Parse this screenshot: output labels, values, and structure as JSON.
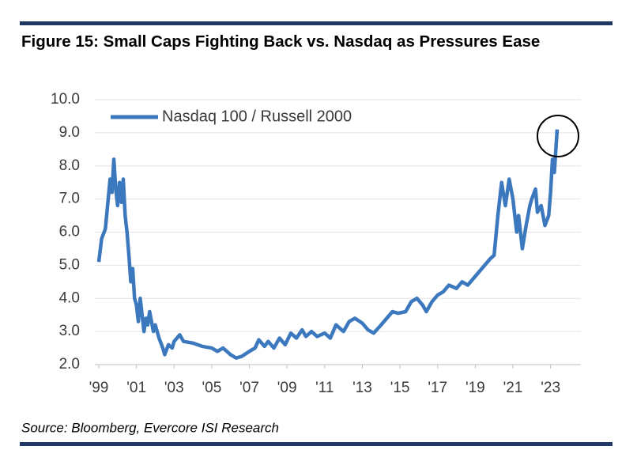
{
  "chart_data": {
    "type": "line",
    "title": "Figure 15: Small Caps Fighting Back vs. Nasdaq as Pressures Ease",
    "source": "Source: Bloomberg, Evercore ISI Research",
    "xlim": [
      1999,
      2024.4
    ],
    "xticks": [
      {
        "value": 1999,
        "label": "'99"
      },
      {
        "value": 2001,
        "label": "'01"
      },
      {
        "value": 2003,
        "label": "'03"
      },
      {
        "value": 2005,
        "label": "'05"
      },
      {
        "value": 2007,
        "label": "'07"
      },
      {
        "value": 2009,
        "label": "'09"
      },
      {
        "value": 2011,
        "label": "'11"
      },
      {
        "value": 2013,
        "label": "'13"
      },
      {
        "value": 2015,
        "label": "'15"
      },
      {
        "value": 2017,
        "label": "'17"
      },
      {
        "value": 2019,
        "label": "'19"
      },
      {
        "value": 2021,
        "label": "'21"
      },
      {
        "value": 2023,
        "label": "'23"
      }
    ],
    "ylim": [
      2,
      10
    ],
    "yticks": [
      {
        "value": 2,
        "label": "2.0"
      },
      {
        "value": 3,
        "label": "3.0"
      },
      {
        "value": 4,
        "label": "4.0"
      },
      {
        "value": 5,
        "label": "5.0"
      },
      {
        "value": 6,
        "label": "6.0"
      },
      {
        "value": 7,
        "label": "7.0"
      },
      {
        "value": 8,
        "label": "8.0"
      },
      {
        "value": 9,
        "label": "9.0"
      },
      {
        "value": 10,
        "label": "10.0"
      }
    ],
    "grid": true,
    "legend": "top-left",
    "x": [
      1999.0,
      1999.15,
      1999.35,
      1999.5,
      1999.6,
      1999.7,
      1999.8,
      1999.9,
      2000.0,
      2000.1,
      2000.2,
      2000.3,
      2000.4,
      2000.5,
      2000.6,
      2000.7,
      2000.8,
      2000.9,
      2001.0,
      2001.1,
      2001.2,
      2001.3,
      2001.4,
      2001.5,
      2001.6,
      2001.7,
      2001.8,
      2001.9,
      2002.0,
      2002.2,
      2002.4,
      2002.5,
      2002.7,
      2002.9,
      2003.0,
      2003.3,
      2003.5,
      2004.0,
      2004.5,
      2005.0,
      2005.3,
      2005.6,
      2006.0,
      2006.3,
      2006.6,
      2007.0,
      2007.3,
      2007.5,
      2007.8,
      2008.0,
      2008.3,
      2008.6,
      2008.9,
      2009.2,
      2009.5,
      2009.8,
      2010.0,
      2010.3,
      2010.6,
      2011.0,
      2011.3,
      2011.6,
      2012.0,
      2012.3,
      2012.6,
      2013.0,
      2013.3,
      2013.6,
      2014.0,
      2014.3,
      2014.6,
      2014.9,
      2015.3,
      2015.6,
      2015.9,
      2016.2,
      2016.4,
      2016.7,
      2017.0,
      2017.3,
      2017.6,
      2018.0,
      2018.3,
      2018.6,
      2018.9,
      2019.2,
      2019.5,
      2019.8,
      2020.0,
      2020.2,
      2020.4,
      2020.6,
      2020.8,
      2021.0,
      2021.2,
      2021.3,
      2021.5,
      2021.7,
      2021.9,
      2022.0,
      2022.2,
      2022.3,
      2022.5,
      2022.7,
      2022.9,
      2023.0,
      2023.1,
      2023.2,
      2023.35
    ],
    "series": [
      {
        "name": "Nasdaq 100 / Russell 2000",
        "color": "#3c78be",
        "values": [
          5.1,
          5.8,
          6.1,
          7.0,
          7.6,
          7.2,
          8.2,
          7.3,
          6.8,
          7.5,
          6.9,
          7.6,
          6.5,
          6.0,
          5.3,
          4.5,
          4.9,
          4.0,
          3.8,
          3.3,
          4.0,
          3.5,
          3.0,
          3.4,
          3.2,
          3.6,
          3.3,
          3.0,
          3.2,
          2.8,
          2.5,
          2.3,
          2.6,
          2.5,
          2.7,
          2.9,
          2.7,
          2.65,
          2.55,
          2.5,
          2.4,
          2.5,
          2.3,
          2.2,
          2.25,
          2.4,
          2.5,
          2.75,
          2.55,
          2.7,
          2.5,
          2.8,
          2.6,
          2.95,
          2.8,
          3.05,
          2.85,
          3.0,
          2.85,
          2.95,
          2.8,
          3.2,
          3.0,
          3.3,
          3.4,
          3.25,
          3.05,
          2.95,
          3.2,
          3.4,
          3.6,
          3.55,
          3.6,
          3.9,
          4.0,
          3.8,
          3.6,
          3.9,
          4.1,
          4.2,
          4.4,
          4.3,
          4.5,
          4.4,
          4.6,
          4.8,
          5.0,
          5.2,
          5.3,
          6.5,
          7.5,
          6.8,
          7.6,
          7.0,
          6.0,
          6.5,
          5.5,
          6.2,
          6.8,
          7.0,
          7.3,
          6.6,
          6.8,
          6.2,
          6.5,
          7.2,
          8.2,
          7.8,
          9.1
        ]
      }
    ]
  }
}
